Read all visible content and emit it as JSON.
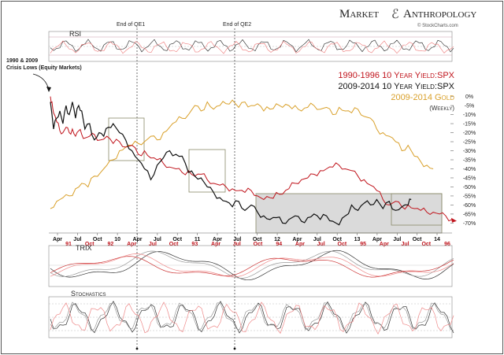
{
  "brand": {
    "title_a": "Market",
    "title_b": "Anthropology",
    "credit": "© StockCharts.com"
  },
  "colors": {
    "red_series": "#c0141c",
    "black_series": "#111111",
    "gold_series": "#d9a02a",
    "pink_series": "#e88c8c",
    "gray_series": "#9a9a9a",
    "box_fill": "#d4d4d4",
    "box_stroke": "#8a8a6a"
  },
  "annotations": {
    "qe1": "End of QE1",
    "qe2": "End of QE2",
    "crisis_line1": "1990 & 2009",
    "crisis_line2": "Crisis Lows (Equity Markets)"
  },
  "panels": {
    "rsi": "RSI",
    "trix": "TRIX",
    "stochastics": "Stochastics"
  },
  "chart_data": {
    "type": "line",
    "legend": [
      {
        "text": "1990-1996 10 Year Yield:SPX",
        "color": "#c0141c"
      },
      {
        "text": "2009-2014 10 Year Yield:SPX",
        "color": "#111111"
      },
      {
        "text": "2009-2014 Gold",
        "color": "#d9a02a"
      },
      {
        "text": "(Weekly)",
        "color": "#333333"
      }
    ],
    "y_axis": {
      "ticks": [
        "0%",
        "-5%",
        "-10%",
        "-15%",
        "-20%",
        "-25%",
        "-30%",
        "-35%",
        "-40%",
        "-45%",
        "-50%",
        "-55%",
        "-60%",
        "-65%",
        "-70%"
      ],
      "values": [
        0,
        -5,
        -10,
        -15,
        -20,
        -25,
        -30,
        -35,
        -40,
        -45,
        -50,
        -55,
        -60,
        -65,
        -70
      ],
      "range": [
        -72,
        2
      ]
    },
    "x_axis_top": [
      "Apr",
      "Jul",
      "Oct",
      "10",
      "Apr",
      "Jul",
      "Oct",
      "11",
      "Apr",
      "Jul",
      "Oct",
      "12",
      "Apr",
      "Jul",
      "Oct",
      "13",
      "Apr",
      "Jul",
      "Oct",
      "14"
    ],
    "x_axis_bottom": [
      "91",
      "Oct",
      "92",
      "Apr",
      "Jul",
      "Oct",
      "93",
      "Apr",
      "Jul",
      "Oct",
      "94",
      "Apr",
      "Jul",
      "Oct",
      "95",
      "Apr",
      "Jul",
      "Oct",
      "96"
    ],
    "series": [
      {
        "name": "1990-1996 10 Year Yield:SPX",
        "x": [
          0,
          1,
          2,
          4,
          6,
          8,
          10,
          12,
          14,
          16,
          18,
          20,
          22,
          25,
          28,
          32,
          36,
          40,
          44,
          48,
          52,
          56,
          60,
          64,
          68,
          72,
          76,
          80,
          84,
          88,
          92,
          96,
          100,
          104,
          108,
          112,
          116,
          120,
          124,
          128,
          132,
          136,
          140,
          144,
          148,
          152,
          156,
          160,
          164,
          168,
          172,
          176,
          180,
          184,
          188,
          192,
          196,
          200,
          204,
          208,
          212,
          216,
          220,
          224,
          228,
          232,
          236,
          240,
          244,
          248,
          252,
          256
        ],
        "values": [
          0,
          -3,
          -9,
          -14,
          -19,
          -20,
          -17,
          -20,
          -18,
          -22,
          -19,
          -21,
          -23,
          -22,
          -21,
          -24,
          -22,
          -26,
          -25,
          -28,
          -27,
          -32,
          -30,
          -34,
          -35,
          -37,
          -39,
          -40,
          -42,
          -41,
          -44,
          -43,
          -46,
          -48,
          -49,
          -50,
          -51,
          -52,
          -53,
          -52,
          -55,
          -57,
          -56,
          -53,
          -54,
          -51,
          -48,
          -46,
          -45,
          -43,
          -41,
          -40,
          -39,
          -38,
          -40,
          -41,
          -44,
          -46,
          -49,
          -52,
          -57,
          -60,
          -58,
          -61,
          -60,
          -62,
          -63,
          -64,
          -64,
          -65,
          -66,
          -68
        ]
      },
      {
        "name": "2009-2014 10 Year Yield:SPX",
        "x": [
          0,
          2,
          4,
          6,
          8,
          10,
          12,
          14,
          16,
          18,
          20,
          22,
          25,
          28,
          31,
          34,
          37,
          40,
          44,
          48,
          52,
          56,
          60,
          64,
          68,
          72,
          76,
          80,
          84,
          88,
          92,
          96,
          100,
          104,
          108,
          112,
          116,
          120,
          124,
          128,
          132,
          136,
          140,
          144,
          148,
          152,
          156,
          160,
          164,
          168,
          172,
          176,
          180,
          184,
          188,
          192,
          196,
          200,
          204,
          208,
          212,
          216,
          220,
          224,
          228,
          230
        ],
        "values": [
          -3,
          -18,
          -12,
          -8,
          -15,
          -5,
          -10,
          -3,
          -12,
          -5,
          -8,
          -18,
          -15,
          -24,
          -20,
          -22,
          -17,
          -15,
          -20,
          -24,
          -30,
          -35,
          -40,
          -46,
          -38,
          -34,
          -30,
          -32,
          -33,
          -42,
          -44,
          -45,
          -50,
          -53,
          -56,
          -58,
          -61,
          -58,
          -63,
          -60,
          -64,
          -66,
          -68,
          -67,
          -70,
          -68,
          -66,
          -69,
          -67,
          -65,
          -68,
          -66,
          -69,
          -71,
          -66,
          -60,
          -63,
          -59,
          -60,
          -57,
          -62,
          -58,
          -63,
          -61,
          -60,
          -57
        ]
      },
      {
        "name": "2009-2014 Gold",
        "x": [
          0,
          4,
          8,
          12,
          16,
          20,
          24,
          28,
          32,
          36,
          40,
          44,
          48,
          52,
          56,
          60,
          64,
          68,
          72,
          76,
          80,
          84,
          88,
          92,
          96,
          100,
          104,
          108,
          112,
          116,
          120,
          124,
          128,
          132,
          136,
          140,
          144,
          148,
          152,
          156,
          160,
          164,
          168,
          172,
          176,
          180,
          184,
          188,
          192,
          196,
          200,
          204,
          208,
          212,
          216,
          220,
          224,
          228,
          232,
          236,
          240,
          244
        ],
        "values": [
          -62,
          -58,
          -56,
          -55,
          -51,
          -48,
          -50,
          -44,
          -42,
          -38,
          -35,
          -30,
          -28,
          -27,
          -26,
          -25,
          -22,
          -24,
          -20,
          -17,
          -14,
          -12,
          -10,
          -5,
          -8,
          -3,
          -7,
          -5,
          -4,
          -2,
          -6,
          -3,
          -5,
          -4,
          -8,
          -7,
          -4,
          -6,
          -5,
          -5,
          -8,
          -6,
          -5,
          -7,
          -6,
          -10,
          -6,
          -8,
          -9,
          -7,
          -11,
          -12,
          -18,
          -20,
          -22,
          -25,
          -30,
          -27,
          -33,
          -36,
          -38,
          -40
        ]
      }
    ]
  }
}
